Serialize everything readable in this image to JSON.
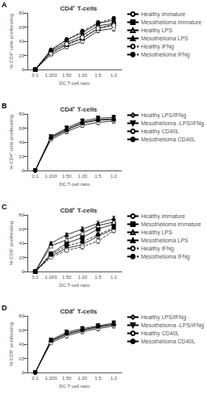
{
  "chart_data": [
    {
      "type": "line",
      "title": "CD4⁺ T-cells",
      "annotations": [
        "A"
      ],
      "xlabel": "DC:T-cell ratio",
      "ylabel": "% CD4⁺ cells proliferating",
      "categories": [
        "0:1",
        "1:200",
        "1:50",
        "1:20",
        "1:5",
        "1:2"
      ],
      "ylim": [
        0,
        80
      ],
      "yticks": [
        0,
        20,
        40,
        60,
        80
      ],
      "grid": false,
      "legend": "right",
      "color": "black",
      "series": [
        {
          "name": "Healthy Immature",
          "marker": "circle",
          "color": "white",
          "line_style": "solid",
          "values": [
            0,
            21,
            32,
            40,
            55,
            58
          ],
          "err": [
            0,
            2,
            2.5,
            3,
            3,
            3.5
          ]
        },
        {
          "name": "Mesothelioma Immature",
          "marker": "square",
          "color": "black",
          "line_style": "solid",
          "values": [
            0,
            24,
            35,
            44,
            58,
            64
          ],
          "err": [
            0,
            2,
            2.5,
            3,
            3,
            3.5
          ]
        },
        {
          "name": "Healthy LPS",
          "marker": "triangle",
          "color": "white",
          "line_style": "solid",
          "values": [
            0,
            26,
            38,
            48,
            62,
            65
          ],
          "err": [
            0,
            2,
            2.5,
            3,
            3,
            3
          ]
        },
        {
          "name": "Mesothelioma LPS",
          "marker": "triangle",
          "color": "black",
          "line_style": "solid",
          "values": [
            0,
            28,
            42,
            52,
            65,
            70
          ],
          "err": [
            0,
            2,
            2.5,
            3,
            3,
            3
          ]
        },
        {
          "name": "Healthy IFNg",
          "marker": "circle",
          "color": "white",
          "line_style": "dashed",
          "values": [
            0,
            23,
            36,
            45,
            58,
            62
          ],
          "err": [
            0,
            2,
            2.5,
            3,
            3,
            3
          ]
        },
        {
          "name": "Mesothelioma IFNg",
          "marker": "circle",
          "color": "black",
          "line_style": "dashed",
          "values": [
            0,
            27,
            42,
            54,
            66,
            72
          ],
          "err": [
            0,
            2,
            2.5,
            3,
            3,
            3
          ]
        }
      ]
    },
    {
      "type": "line",
      "title": "CD4⁺ T-cells",
      "annotations": [
        "B"
      ],
      "xlabel": "DC:T-cell ratio",
      "ylabel": "% CD4⁺ cells proliferating",
      "categories": [
        "0:1",
        "1:200",
        "1:50",
        "1:20",
        "1:5",
        "1:2"
      ],
      "ylim": [
        0,
        80
      ],
      "yticks": [
        0,
        20,
        40,
        60,
        80
      ],
      "grid": false,
      "legend": "right",
      "color": "black",
      "series": [
        {
          "name": "Healthy LPS/IFNg",
          "marker": "diamond",
          "color": "white",
          "line_style": "solid",
          "values": [
            0,
            47,
            58,
            68,
            72,
            73
          ],
          "err": [
            0,
            2,
            3,
            3,
            3,
            3
          ]
        },
        {
          "name": "Mesothelioma -LPS/IFNg",
          "marker": "triangle-down",
          "color": "black",
          "line_style": "solid",
          "values": [
            0,
            48,
            60,
            70,
            74,
            75
          ],
          "err": [
            0,
            2,
            3,
            3,
            3,
            3
          ]
        },
        {
          "name": "Healthy CD40L",
          "marker": "circle",
          "color": "white",
          "line_style": "solid",
          "values": [
            0,
            44,
            55,
            64,
            68,
            70
          ],
          "err": [
            0,
            2,
            3,
            3,
            3,
            3
          ]
        },
        {
          "name": "Mesothelioma CD40L",
          "marker": "circle",
          "color": "black",
          "line_style": "solid",
          "values": [
            0,
            46,
            57,
            67,
            71,
            72
          ],
          "err": [
            0,
            2,
            3,
            3,
            3,
            3
          ]
        }
      ]
    },
    {
      "type": "line",
      "title": "CD8⁺ T-cells",
      "annotations": [
        "C"
      ],
      "xlabel": "DC:T-cell ratio",
      "ylabel": "% CD8⁺ proliferating",
      "categories": [
        "0:1",
        "1:200",
        "1:50",
        "1:20",
        "1:5",
        "1:2"
      ],
      "ylim": [
        0,
        80
      ],
      "yticks": [
        0,
        20,
        40,
        60,
        80
      ],
      "grid": false,
      "legend": "right",
      "color": "black",
      "series": [
        {
          "name": "Healthy immature",
          "marker": "circle",
          "color": "white",
          "line_style": "solid",
          "values": [
            0,
            22,
            33,
            38,
            50,
            60
          ],
          "err": [
            0,
            2,
            2.5,
            3,
            3,
            3
          ]
        },
        {
          "name": "Mesothelioma immature",
          "marker": "square",
          "color": "black",
          "line_style": "solid",
          "values": [
            0,
            25,
            40,
            48,
            60,
            67
          ],
          "err": [
            0,
            2,
            2.5,
            3,
            3,
            3
          ]
        },
        {
          "name": "Healthy LPS",
          "marker": "triangle",
          "color": "white",
          "line_style": "solid",
          "values": [
            0,
            36,
            45,
            54,
            65,
            70
          ],
          "err": [
            0,
            2,
            2.5,
            3,
            3,
            3
          ]
        },
        {
          "name": "Mesothelioma LPS",
          "marker": "triangle",
          "color": "black",
          "line_style": "solid",
          "values": [
            0,
            40,
            52,
            60,
            68,
            75
          ],
          "err": [
            0,
            2,
            2.5,
            3,
            3,
            3
          ]
        },
        {
          "name": "Healthy IFNg",
          "marker": "circle",
          "color": "white",
          "line_style": "dashed",
          "values": [
            0,
            20,
            30,
            35,
            43,
            58
          ],
          "err": [
            0,
            2,
            2.5,
            3,
            3,
            3
          ]
        },
        {
          "name": "Mesothelioma IFNg",
          "marker": "circle",
          "color": "black",
          "line_style": "dashed",
          "values": [
            0,
            24,
            36,
            42,
            52,
            62
          ],
          "err": [
            0,
            2,
            2.5,
            3,
            3,
            3
          ]
        }
      ]
    },
    {
      "type": "line",
      "title": "CD8⁺ T-cells",
      "annotations": [
        "D"
      ],
      "xlabel": "DC:T-cell ratio",
      "ylabel": "% CD8⁺ proliferating",
      "categories": [
        "0:1",
        "1:200",
        "1:50",
        "1:20",
        "1:5",
        "1:2"
      ],
      "ylim": [
        0,
        80
      ],
      "yticks": [
        0,
        20,
        40,
        60,
        80
      ],
      "grid": false,
      "legend": "right",
      "color": "black",
      "series": [
        {
          "name": "Healthy LPS/IFNg",
          "marker": "diamond",
          "color": "white",
          "line_style": "solid",
          "values": [
            0,
            44,
            54,
            60,
            64,
            68
          ],
          "err": [
            0,
            2,
            3,
            3,
            3,
            3
          ]
        },
        {
          "name": "Mesothelioma -LPS/IFNg",
          "marker": "triangle-down",
          "color": "black",
          "line_style": "solid",
          "values": [
            0,
            46,
            57,
            62,
            66,
            70
          ],
          "err": [
            0,
            2,
            3,
            3,
            3,
            3
          ]
        },
        {
          "name": "Healthy CD40L",
          "marker": "circle",
          "color": "white",
          "line_style": "solid",
          "values": [
            0,
            42,
            52,
            58,
            62,
            66
          ],
          "err": [
            0,
            2,
            3,
            3,
            3,
            3
          ]
        },
        {
          "name": "Mesothelioma CD40L",
          "marker": "circle",
          "color": "black",
          "line_style": "solid",
          "values": [
            0,
            45,
            55,
            60,
            65,
            68
          ],
          "err": [
            0,
            2,
            3,
            3,
            3,
            3
          ]
        }
      ]
    }
  ]
}
